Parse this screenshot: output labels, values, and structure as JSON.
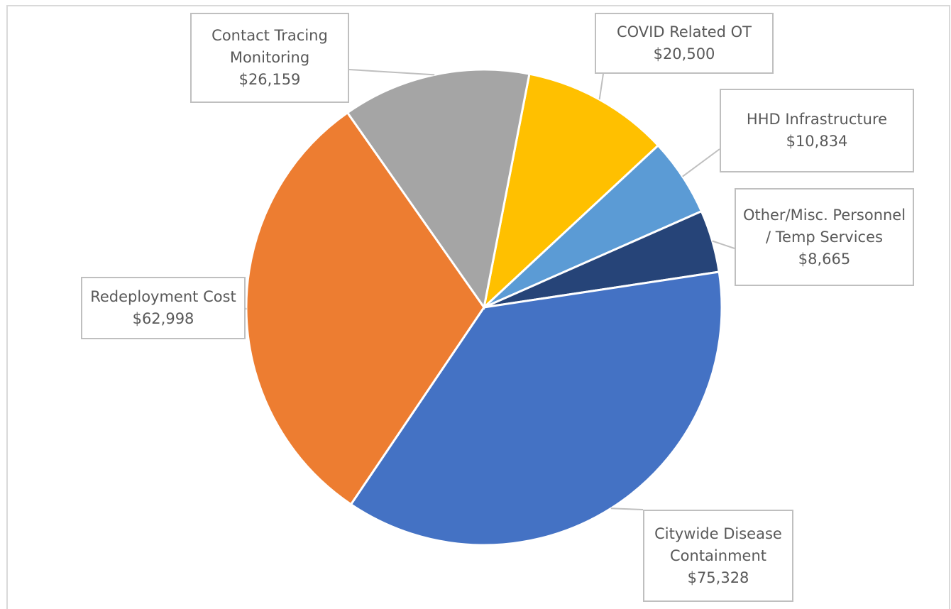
{
  "chart_data": {
    "type": "pie",
    "start_angle": 11,
    "categories": [
      "COVID Related OT",
      "HHD Infrastructure",
      "Other/Misc. Personnel / Temp Services",
      "Citywide Disease Containment",
      "Redeployment Cost",
      "Contact Tracing Monitoring"
    ],
    "values": [
      20500,
      10834,
      8665,
      75328,
      62998,
      26159
    ],
    "value_labels": [
      "$20,500",
      "$10,834",
      "$8,665",
      "$75,328",
      "$62,998",
      "$26,159"
    ],
    "colors": [
      "#ffc000",
      "#5b9bd5",
      "#264478",
      "#4472c4",
      "#ed7d31",
      "#a5a5a5"
    ]
  }
}
